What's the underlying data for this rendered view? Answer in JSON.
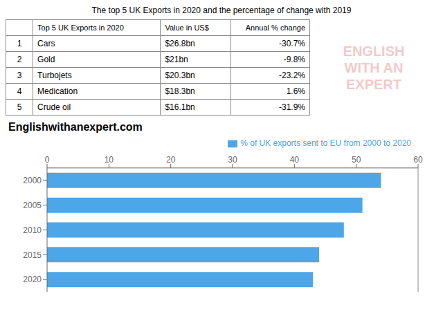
{
  "chart_data": [
    {
      "type": "table",
      "title": "The top 5 UK Exports in 2020 and the percentage of change with 2019",
      "columns": [
        null,
        "Top 5 UK Exports in 2020",
        "Value in US$",
        "Annual % change"
      ],
      "rows": [
        [
          "1",
          "Cars",
          "$26.8bn",
          "-30.7%"
        ],
        [
          "2",
          "Gold",
          "$21bn",
          "-9.8%"
        ],
        [
          "3",
          "Turbojets",
          "$20.3bn",
          "-23.2%"
        ],
        [
          "4",
          "Medication",
          "$18.3bn",
          "1.6%"
        ],
        [
          "5",
          "Crude oil",
          "$16.1bn",
          "-31.9%"
        ]
      ],
      "annotations": [
        {
          "text": "ENGLISH\nWITH AN\nEXPERT",
          "color": "#e8a0a0"
        }
      ]
    },
    {
      "type": "bar",
      "orientation": "horizontal",
      "categories": [
        "2000",
        "2005",
        "2010",
        "2015",
        "2020"
      ],
      "series": [
        {
          "name": "% of UK exports sent to EU from 2000 to 2020",
          "color": "#4da6e8",
          "values": [
            54,
            51,
            48,
            44,
            43
          ]
        }
      ],
      "xlim": [
        0,
        60
      ],
      "xticks": [
        0,
        10,
        20,
        30,
        40,
        50,
        60
      ],
      "grid": false,
      "legend": "upper right",
      "annotations": [
        {
          "text": "Englishwithanexpert.com",
          "color": "#000000"
        }
      ]
    }
  ]
}
